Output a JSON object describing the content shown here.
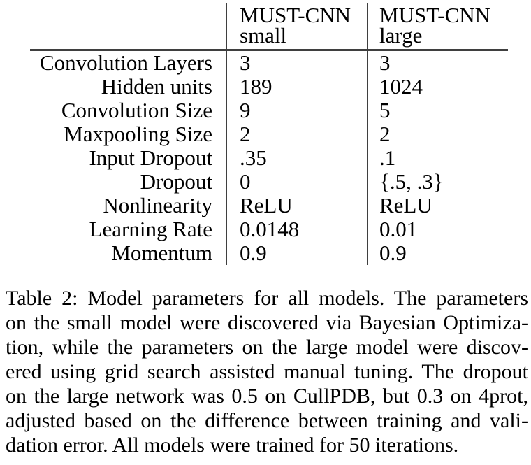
{
  "table": {
    "header": {
      "col_label": "",
      "col_small": {
        "line1": "MUST-CNN",
        "line2": "small"
      },
      "col_large": {
        "line1": "MUST-CNN",
        "line2": "large"
      }
    },
    "rows": [
      {
        "label": "Convolution Layers",
        "small": "3",
        "large": "3"
      },
      {
        "label": "Hidden units",
        "small": "189",
        "large": "1024"
      },
      {
        "label": "Convolution Size",
        "small": "9",
        "large": "5"
      },
      {
        "label": "Maxpooling Size",
        "small": "2",
        "large": "2"
      },
      {
        "label": "Input Dropout",
        "small": ".35",
        "large": ".1"
      },
      {
        "label": "Dropout",
        "small": "0",
        "large": "{.5, .3}"
      },
      {
        "label": "Nonlinearity",
        "small": "ReLU",
        "large": "ReLU"
      },
      {
        "label": "Learning Rate",
        "small": "0.0148",
        "large": "0.01"
      },
      {
        "label": "Momentum",
        "small": "0.9",
        "large": "0.9"
      }
    ]
  },
  "caption": {
    "lines": [
      "Table 2: Model parameters for all models. The parameters",
      "on the small model were discovered via Bayesian Optimiza-",
      "tion, while the parameters on the large model were discov-",
      "ered using grid search assisted manual tuning. The dropout",
      "on the large network was 0.5 on CullPDB, but 0.3 on 4prot,",
      "adjusted based on the difference between training and vali-",
      "dation error. All models were trained for 50 iterations."
    ]
  },
  "colors": {
    "text": "#000000",
    "rule": "#3f3f3f",
    "background": "#ffffff"
  }
}
